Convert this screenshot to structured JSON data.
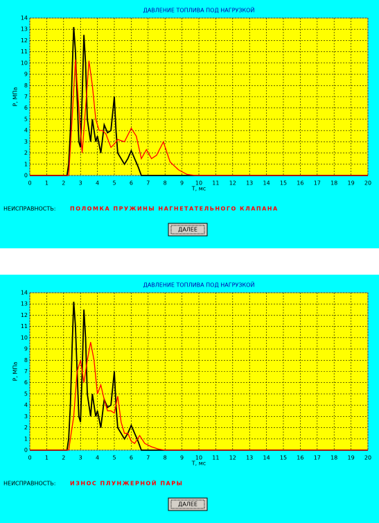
{
  "chart_data": [
    {
      "type": "line",
      "title": "ДАВЛЕНИЕ ТОПЛИВА ПОД НАГРУЗКОЙ",
      "x_label": "T, мс",
      "y_label": "P, МПа",
      "xlim": [
        0,
        20
      ],
      "ylim": [
        0,
        14
      ],
      "xticks": [
        0,
        1,
        2,
        3,
        4,
        5,
        6,
        7,
        8,
        9,
        10,
        11,
        12,
        13,
        14,
        15,
        16,
        17,
        18,
        19,
        20
      ],
      "yticks": [
        0,
        1,
        2,
        3,
        4,
        5,
        6,
        7,
        8,
        9,
        10,
        11,
        12,
        13,
        14
      ],
      "grid": true,
      "series": [
        {
          "color": "#000000",
          "x": [
            0,
            2.2,
            2.3,
            2.4,
            2.5,
            2.6,
            2.7,
            2.8,
            2.9,
            3.0,
            3.1,
            3.2,
            3.3,
            3.4,
            3.5,
            3.6,
            3.7,
            3.8,
            3.9,
            4.0,
            4.2,
            4.4,
            4.6,
            4.8,
            5.0,
            5.1,
            5.2,
            5.4,
            5.6,
            5.8,
            6.0,
            6.2,
            6.4,
            6.6,
            7,
            20
          ],
          "values": [
            0,
            0,
            1,
            4,
            9,
            13.2,
            11,
            7,
            3,
            2.5,
            7,
            12.5,
            10,
            5,
            4,
            3,
            5,
            4,
            3,
            3.5,
            2,
            4.5,
            3.8,
            4,
            7,
            4,
            2,
            1.5,
            1,
            1.5,
            2.2,
            1.5,
            0.8,
            0,
            0,
            0
          ]
        },
        {
          "color": "#ff0000",
          "x": [
            0,
            2.3,
            2.5,
            2.7,
            2.9,
            3.1,
            3.3,
            3.5,
            3.7,
            3.9,
            4.1,
            4.3,
            4.5,
            4.8,
            5.0,
            5.2,
            5.6,
            6.0,
            6.3,
            6.6,
            6.9,
            7.2,
            7.5,
            7.9,
            8.3,
            8.8,
            9.3,
            9.8,
            20
          ],
          "values": [
            0,
            0,
            5,
            10.3,
            6,
            2,
            6,
            10.2,
            8,
            5,
            4,
            4,
            3.7,
            2.5,
            2.8,
            3.2,
            3.0,
            4.2,
            3.5,
            1.5,
            2.3,
            1.5,
            1.8,
            3.0,
            1.2,
            0.5,
            0.1,
            0,
            0
          ]
        }
      ]
    },
    {
      "type": "line",
      "title": "ДАВЛЕНИЕ ТОПЛИВА ПОД НАГРУЗКОЙ",
      "x_label": "T, мс",
      "y_label": "P, МПа",
      "xlim": [
        0,
        20
      ],
      "ylim": [
        0,
        14
      ],
      "xticks": [
        0,
        1,
        2,
        3,
        4,
        5,
        6,
        7,
        8,
        9,
        10,
        11,
        12,
        13,
        14,
        15,
        16,
        17,
        18,
        19,
        20
      ],
      "yticks": [
        0,
        1,
        2,
        3,
        4,
        5,
        6,
        7,
        8,
        9,
        10,
        11,
        12,
        13,
        14
      ],
      "grid": true,
      "series": [
        {
          "color": "#000000",
          "x": [
            0,
            2.2,
            2.3,
            2.4,
            2.5,
            2.6,
            2.7,
            2.8,
            2.9,
            3.0,
            3.1,
            3.2,
            3.3,
            3.4,
            3.5,
            3.6,
            3.7,
            3.8,
            3.9,
            4.0,
            4.2,
            4.4,
            4.6,
            4.8,
            5.0,
            5.1,
            5.2,
            5.4,
            5.6,
            5.8,
            6.0,
            6.2,
            6.4,
            6.6,
            7,
            20
          ],
          "values": [
            0,
            0,
            1,
            4,
            9,
            13.2,
            11,
            7,
            3,
            2.5,
            7,
            12.5,
            10,
            5,
            4,
            3,
            5,
            4,
            3,
            3.5,
            2,
            4.5,
            3.8,
            4,
            7,
            4,
            2,
            1.5,
            1,
            1.5,
            2.2,
            1.5,
            0.8,
            0,
            0,
            0
          ]
        },
        {
          "color": "#ff0000",
          "x": [
            0,
            2.3,
            2.6,
            2.8,
            3.0,
            3.2,
            3.4,
            3.6,
            3.8,
            4.0,
            4.2,
            4.4,
            4.6,
            4.8,
            5.0,
            5.2,
            5.4,
            5.6,
            5.8,
            6.0,
            6.2,
            6.5,
            6.8,
            7.2,
            7.6,
            8.0,
            20
          ],
          "values": [
            0,
            0,
            3,
            7,
            8,
            6,
            8,
            9.6,
            8,
            5,
            5.8,
            4.5,
            3.5,
            3.5,
            3.3,
            4.8,
            2.5,
            1.5,
            1.5,
            0.8,
            0.6,
            1.3,
            0.6,
            0.3,
            0.1,
            0,
            0
          ]
        }
      ]
    }
  ],
  "panels": [
    {
      "fault_label": "НЕИСПРАВНОСТЬ:",
      "fault": "ПОЛОМКА ПРУЖИНЫ НАГНЕТАТЕЛЬНОГО КЛАПАНА",
      "button": "ДАЛЕЕ"
    },
    {
      "fault_label": "НЕИСПРАВНОСТЬ:",
      "fault": "ИЗНОС ПЛУНЖЕРНОЙ ПАРЫ",
      "button": "ДАЛЕЕ"
    }
  ]
}
